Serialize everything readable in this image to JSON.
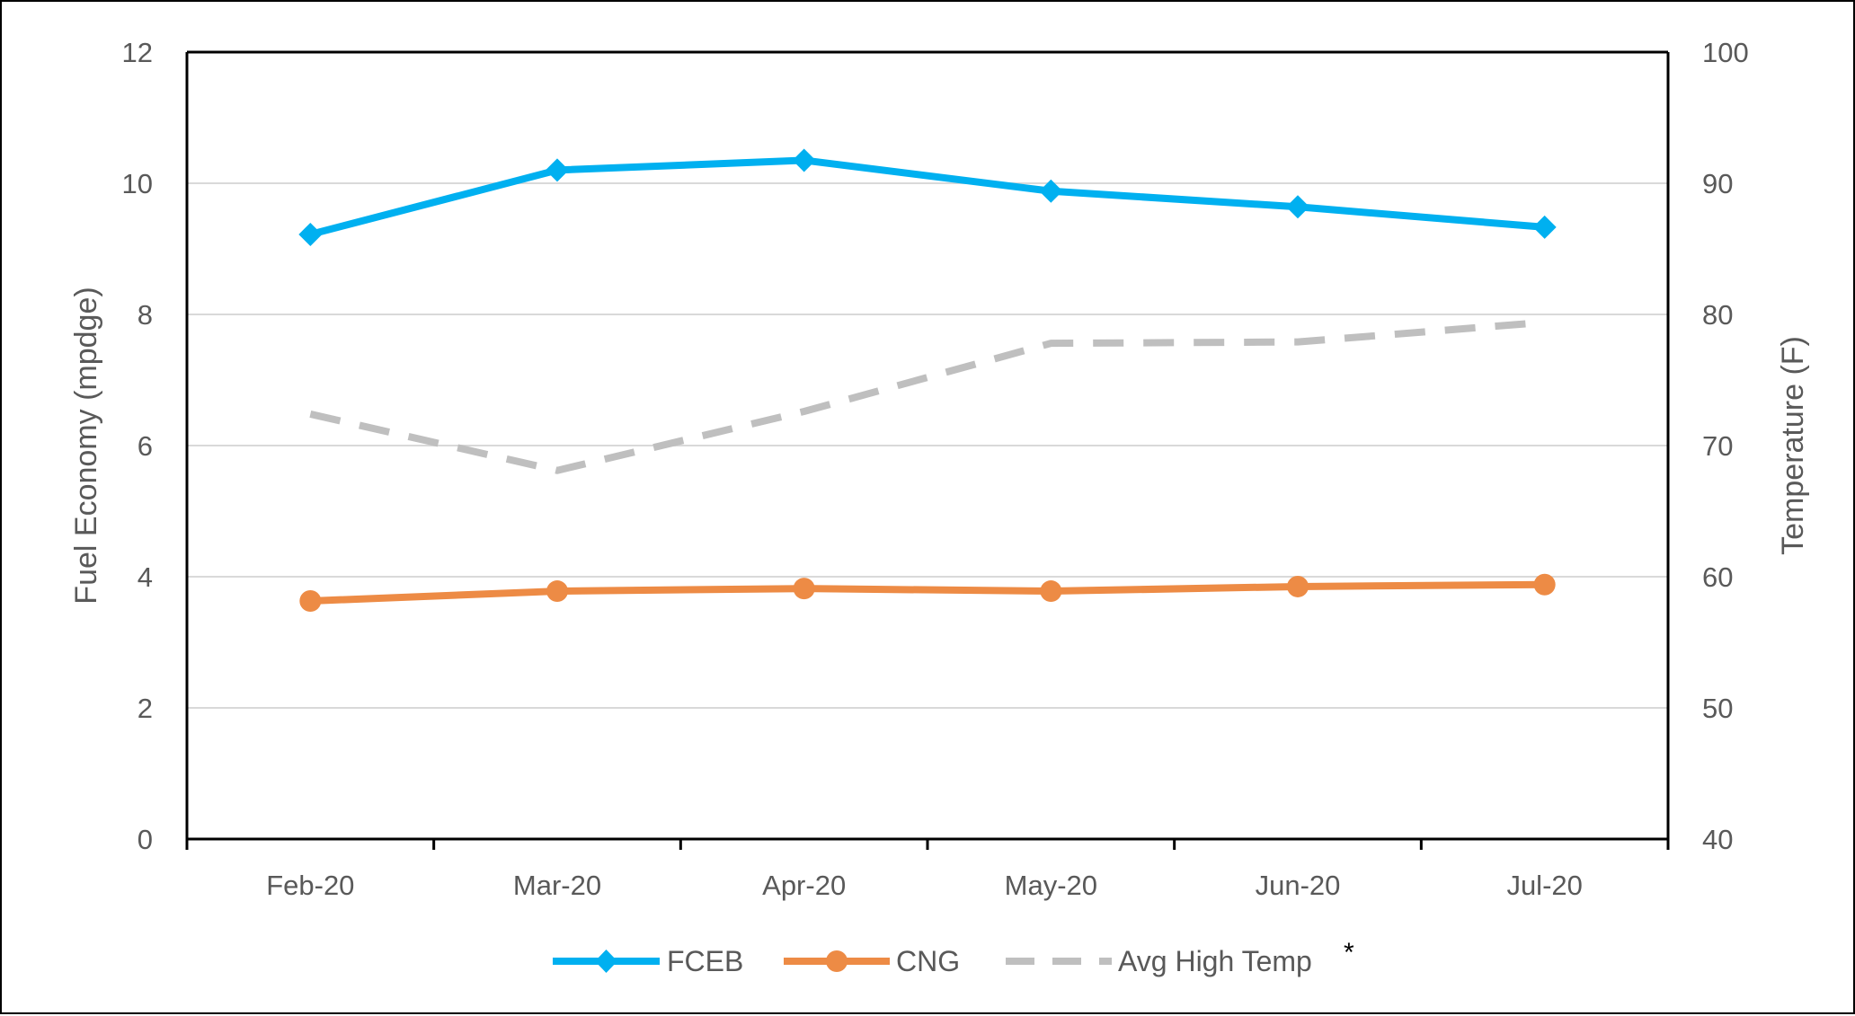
{
  "chart_data": {
    "type": "line",
    "categories": [
      "Feb-20",
      "Mar-20",
      "Apr-20",
      "May-20",
      "Jun-20",
      "Jul-20"
    ],
    "series": [
      {
        "name": "FCEB",
        "axis": "left",
        "values": [
          9.22,
          10.2,
          10.35,
          9.88,
          9.64,
          9.33
        ],
        "color": "#00B0F0",
        "marker": "diamond",
        "dash": "solid"
      },
      {
        "name": "CNG",
        "axis": "left",
        "values": [
          3.63,
          3.78,
          3.82,
          3.78,
          3.85,
          3.88
        ],
        "color": "#ED8B45",
        "marker": "circle",
        "dash": "solid"
      },
      {
        "name": "Avg High Temp",
        "axis": "right",
        "values": [
          72.4,
          68.1,
          72.6,
          77.8,
          77.9,
          79.4
        ],
        "color": "#BFBFBF",
        "marker": "none",
        "dash": "dashed"
      }
    ],
    "y_left": {
      "label": "Fuel Economy (mpdge)",
      "min": 0,
      "max": 12,
      "ticks": [
        "0",
        "2",
        "4",
        "6",
        "8",
        "10",
        "12"
      ]
    },
    "y_right": {
      "label": "Temperature (F)",
      "min": 40,
      "max": 100,
      "ticks": [
        "40",
        "50",
        "60",
        "70",
        "80",
        "90",
        "100"
      ]
    },
    "grid": true,
    "legend": {
      "position": "bottom",
      "note": "*"
    },
    "colors": {
      "axis": "#000000",
      "grid": "#D9D9D9",
      "text": "#595959"
    }
  }
}
